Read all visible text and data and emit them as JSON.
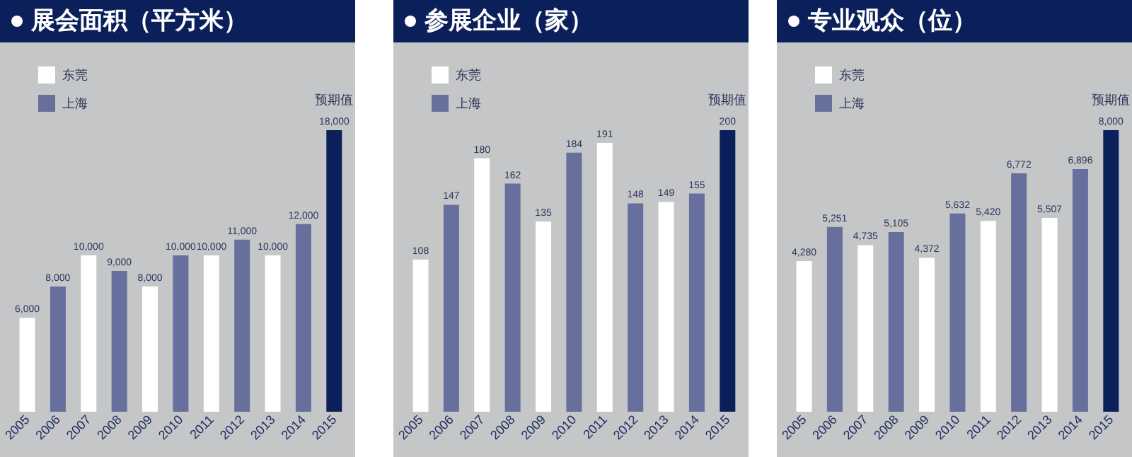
{
  "chart_data": [
    {
      "type": "bar",
      "title": "展会面积（平方米）",
      "categories": [
        "2005",
        "2006",
        "2007",
        "2008",
        "2009",
        "2010",
        "2011",
        "2012",
        "2013",
        "2014",
        "2015"
      ],
      "legend": "top left",
      "grid": false,
      "tick_labels": "x",
      "series": [
        {
          "name": "东莞",
          "color": "#ffffff",
          "values": [
            6000,
            null,
            10000,
            null,
            8000,
            null,
            10000,
            null,
            10000,
            null,
            null
          ],
          "value_labels": [
            "6,000",
            null,
            "10,000",
            null,
            "8,000",
            null,
            "10,000",
            null,
            "10,000",
            null,
            null
          ]
        },
        {
          "name": "上海",
          "color": "#676f9d",
          "values": [
            null,
            8000,
            null,
            9000,
            null,
            10000,
            null,
            11000,
            null,
            12000,
            null
          ],
          "value_labels": [
            null,
            "8,000",
            null,
            "9,000",
            null,
            "10,000",
            null,
            "11,000",
            null,
            "12,000",
            null
          ]
        },
        {
          "color": "#0b1f5a",
          "values": [
            null,
            null,
            null,
            null,
            null,
            null,
            null,
            null,
            null,
            null,
            18000
          ],
          "value_labels": [
            null,
            null,
            null,
            null,
            null,
            null,
            null,
            null,
            null,
            null,
            "18,000"
          ]
        }
      ],
      "annotations": [
        {
          "text": "预期值",
          "x": "2015",
          "y": 18000
        }
      ]
    },
    {
      "type": "bar",
      "title": "参展企业（家）",
      "categories": [
        "2005",
        "2006",
        "2007",
        "2008",
        "2009",
        "2010",
        "2011",
        "2012",
        "2013",
        "2014",
        "2015"
      ],
      "legend": "top left",
      "grid": false,
      "tick_labels": "x",
      "series": [
        {
          "name": "东莞",
          "color": "#ffffff",
          "values": [
            108,
            null,
            180,
            null,
            135,
            null,
            191,
            null,
            149,
            null,
            null
          ],
          "value_labels": [
            "108",
            null,
            "180",
            null,
            "135",
            null,
            "191",
            null,
            "149",
            null,
            null
          ]
        },
        {
          "name": "上海",
          "color": "#676f9d",
          "values": [
            null,
            147,
            null,
            162,
            null,
            184,
            null,
            148,
            null,
            155,
            null
          ],
          "value_labels": [
            null,
            "147",
            null,
            "162",
            null,
            "184",
            null,
            "148",
            null,
            "155",
            null
          ]
        },
        {
          "color": "#0b1f5a",
          "values": [
            null,
            null,
            null,
            null,
            null,
            null,
            null,
            null,
            null,
            null,
            200
          ],
          "value_labels": [
            null,
            null,
            null,
            null,
            null,
            null,
            null,
            null,
            null,
            null,
            "200"
          ]
        }
      ],
      "annotations": [
        {
          "text": "预期值",
          "x": "2015",
          "y": 200
        }
      ]
    },
    {
      "type": "bar",
      "title": "专业观众（位）",
      "categories": [
        "2005",
        "2006",
        "2007",
        "2008",
        "2009",
        "2010",
        "2011",
        "2012",
        "2013",
        "2014",
        "2015"
      ],
      "legend": "top left",
      "grid": false,
      "tick_labels": "x",
      "series": [
        {
          "name": "东莞",
          "color": "#ffffff",
          "values": [
            4280,
            null,
            4735,
            null,
            4372,
            null,
            5420,
            null,
            5507,
            null,
            null
          ],
          "value_labels": [
            "4,280",
            null,
            "4,735",
            null,
            "4,372",
            null,
            "5,420",
            null,
            "5,507",
            null,
            null
          ]
        },
        {
          "name": "上海",
          "color": "#676f9d",
          "values": [
            null,
            5251,
            null,
            5105,
            null,
            5632,
            null,
            6772,
            null,
            6896,
            null
          ],
          "value_labels": [
            null,
            "5,251",
            null,
            "5,105",
            null,
            "5,632",
            null,
            "6,772",
            null,
            "6,896",
            null
          ]
        },
        {
          "color": "#0b1f5a",
          "values": [
            null,
            null,
            null,
            null,
            null,
            null,
            null,
            null,
            null,
            null,
            8000
          ],
          "value_labels": [
            null,
            null,
            null,
            null,
            null,
            null,
            null,
            null,
            null,
            null,
            "8,000"
          ]
        }
      ],
      "annotations": [
        {
          "text": "预期值",
          "x": "2015",
          "y": 8000
        }
      ]
    }
  ]
}
